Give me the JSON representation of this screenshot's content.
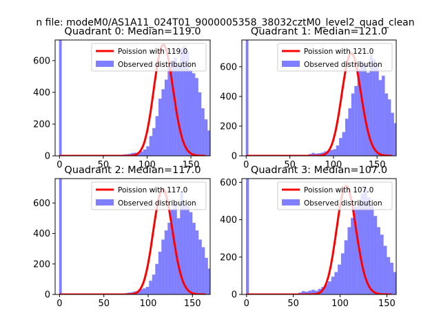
{
  "suptitle": "n file: modeM0/AS1A11_024T01_9000005358_38032cztM0_level2_quad_clean",
  "colors": {
    "observed": "#0000ff",
    "poisson": "#ff0000",
    "axis": "#000000"
  },
  "chart_data": [
    {
      "type": "bar",
      "title": "Quadrant 0: Median=119.0",
      "xlim": [
        -5,
        172
      ],
      "ylim": [
        0,
        730
      ],
      "xticks": [
        0,
        50,
        100,
        150
      ],
      "yticks": [
        0,
        200,
        400,
        600
      ],
      "legend": {
        "placement": "top-right",
        "poisson_label": "Poission with 119.0",
        "observed_label": "Observed distribution"
      },
      "poisson_mean": 119,
      "zero_bin_height": 730,
      "hist_x0": 64,
      "hist_dx": 3.5,
      "hist_counts": [
        3,
        5,
        8,
        10,
        12,
        18,
        20,
        15,
        28,
        40,
        60,
        125,
        175,
        250,
        360,
        420,
        480,
        560,
        600,
        620,
        570,
        680,
        690,
        660,
        540,
        520,
        490,
        400,
        300,
        230,
        160,
        110,
        75,
        40,
        30,
        20,
        10,
        5,
        3
      ]
    },
    {
      "type": "bar",
      "title": "Quadrant 1: Median=121.0",
      "xlim": [
        -5,
        172
      ],
      "ylim": [
        0,
        780
      ],
      "xticks": [
        0,
        50,
        100,
        150
      ],
      "yticks": [
        0,
        200,
        400,
        600
      ],
      "legend": {
        "placement": "top-right",
        "poisson_label": "Poission with 121.0",
        "observed_label": "Observed distribution"
      },
      "poisson_mean": 121,
      "zero_bin_height": 780,
      "hist_x0": 68,
      "hist_dx": 3.5,
      "hist_counts": [
        5,
        12,
        20,
        15,
        18,
        22,
        30,
        35,
        40,
        45,
        70,
        120,
        160,
        250,
        320,
        420,
        470,
        580,
        640,
        620,
        560,
        680,
        650,
        620,
        510,
        540,
        420,
        380,
        290,
        220,
        160,
        110,
        80,
        50,
        30,
        20,
        10,
        6
      ]
    },
    {
      "type": "bar",
      "title": "Quadrant 2: Median=117.0",
      "xlim": [
        -5,
        170
      ],
      "ylim": [
        0,
        760
      ],
      "xticks": [
        0,
        50,
        100,
        150
      ],
      "yticks": [
        0,
        200,
        400,
        600
      ],
      "legend": {
        "placement": "top-right",
        "poisson_label": "Poission with 117.0",
        "observed_label": "Observed distribution"
      },
      "poisson_mean": 117,
      "zero_bin_height": 760,
      "hist_x0": 66,
      "hist_dx": 3.5,
      "hist_counts": [
        2,
        5,
        8,
        12,
        15,
        20,
        25,
        35,
        40,
        50,
        90,
        130,
        200,
        280,
        360,
        420,
        470,
        560,
        600,
        500,
        680,
        590,
        580,
        540,
        470,
        420,
        360,
        310,
        240,
        170,
        110,
        70,
        45,
        30,
        20,
        12,
        6
      ]
    },
    {
      "type": "bar",
      "title": "Quadrant 3: Median=107.0",
      "xlim": [
        -5,
        160
      ],
      "ylim": [
        0,
        620
      ],
      "xticks": [
        0,
        50,
        100,
        150
      ],
      "yticks": [
        0,
        200,
        400,
        600
      ],
      "legend": {
        "placement": "top-right",
        "poisson_label": "Poission with 107.0",
        "observed_label": "Observed distribution"
      },
      "poisson_mean": 107,
      "zero_bin_height": 620,
      "hist_x0": 52,
      "hist_dx": 3.5,
      "hist_counts": [
        5,
        10,
        18,
        15,
        20,
        25,
        20,
        30,
        40,
        55,
        70,
        95,
        120,
        160,
        220,
        290,
        360,
        410,
        470,
        490,
        540,
        570,
        520,
        480,
        420,
        360,
        320,
        260,
        200,
        170,
        120,
        90,
        60,
        40,
        30,
        20,
        10,
        6,
        3
      ]
    }
  ]
}
